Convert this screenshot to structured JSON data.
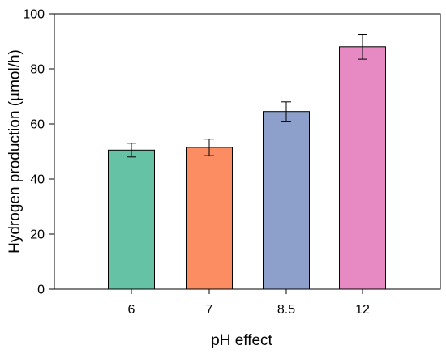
{
  "chart_data": {
    "type": "bar",
    "title": "",
    "xlabel": "pH effect",
    "ylabel": "Hydrogen production (µmol/h)",
    "categories": [
      "6",
      "7",
      "8.5",
      "12"
    ],
    "values": [
      50.5,
      51.5,
      64.5,
      88
    ],
    "errors": [
      2.5,
      3,
      3.5,
      4.5
    ],
    "colors": [
      "#66c2a5",
      "#fc8d62",
      "#8da0cb",
      "#e78ac3"
    ],
    "ylim": [
      0,
      100
    ],
    "yticks": [
      0,
      20,
      40,
      60,
      80,
      100
    ],
    "grid": false,
    "legend": "none"
  }
}
